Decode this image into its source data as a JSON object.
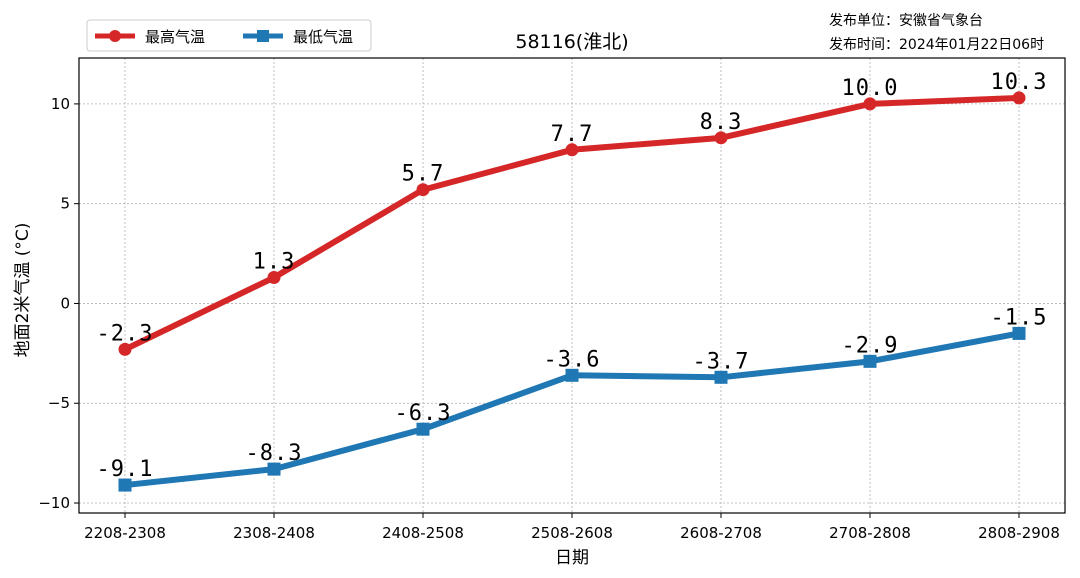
{
  "chart_data": {
    "type": "line",
    "title": "58116(淮北)",
    "xlabel": "日期",
    "ylabel": "地面2米气温 (°C)",
    "categories": [
      "2208-2308",
      "2308-2408",
      "2408-2508",
      "2508-2608",
      "2608-2708",
      "2708-2808",
      "2808-2908"
    ],
    "ylim": [
      -10.5,
      12.3
    ],
    "yticks": [
      -10,
      -5,
      0,
      5,
      10
    ],
    "ytick_labels": [
      "−10",
      "−5",
      "0",
      "5",
      "10"
    ],
    "grid": true,
    "legend_position": "top-left",
    "series": [
      {
        "name": "最高气温",
        "color": "#d62728",
        "marker": "circle",
        "values": [
          -2.3,
          1.3,
          5.7,
          7.7,
          8.3,
          10.0,
          10.3
        ],
        "labels": [
          "-2.3",
          "1.3",
          "5.7",
          "7.7",
          "8.3",
          "10.0",
          "10.3"
        ]
      },
      {
        "name": "最低气温",
        "color": "#1f77b4",
        "marker": "square",
        "values": [
          -9.1,
          -8.3,
          -6.3,
          -3.6,
          -3.7,
          -2.9,
          -1.5
        ],
        "labels": [
          "-9.1",
          "-8.3",
          "-6.3",
          "-3.6",
          "-3.7",
          "-2.9",
          "-1.5"
        ]
      }
    ]
  },
  "info": {
    "publisher": "发布单位：安徽省气象台",
    "publish_time": "发布时间：2024年01月22日06时"
  }
}
